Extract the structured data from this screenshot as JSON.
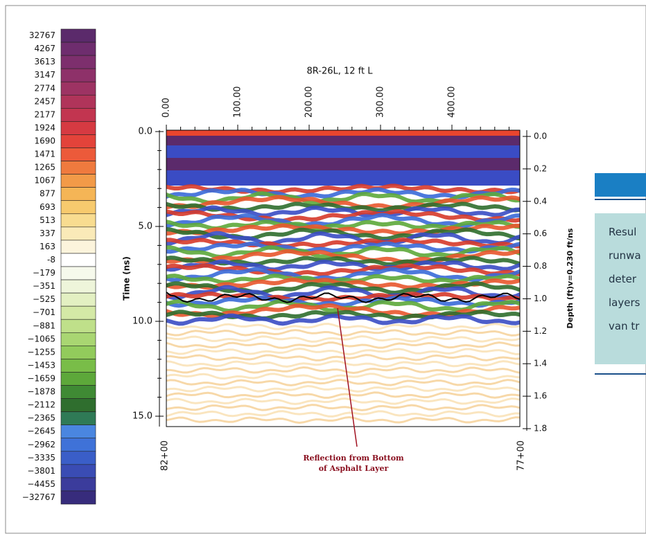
{
  "colorbar": {
    "labels": [
      "32767",
      "4267",
      "3613",
      "3147",
      "2774",
      "2457",
      "2177",
      "1924",
      "1690",
      "1471",
      "1265",
      "1067",
      "877",
      "693",
      "513",
      "337",
      "163",
      "-8",
      "−179",
      "−351",
      "−525",
      "−701",
      "−881",
      "−1065",
      "−1255",
      "−1453",
      "−1659",
      "−1878",
      "−2112",
      "−2365",
      "−2645",
      "−2962",
      "−3335",
      "−3801",
      "−4455",
      "−32767"
    ],
    "colors": [
      "#5b2a6b",
      "#6e2d6e",
      "#7d2f6d",
      "#8e3169",
      "#9d3363",
      "#b0345a",
      "#c23550",
      "#d63a42",
      "#e3433a",
      "#ec5a3a",
      "#ef7a3e",
      "#f29a48",
      "#f5b556",
      "#f7ca6e",
      "#f8dc90",
      "#faeab8",
      "#fcf4dc",
      "#ffffff",
      "#f6f9ec",
      "#eef5da",
      "#e3f0c2",
      "#d4e9a6",
      "#bfe08a",
      "#a9d672",
      "#92cb5c",
      "#79bd48",
      "#5da83a",
      "#3f8a34",
      "#2f6e2e",
      "#2f7a56",
      "#4a86e0",
      "#3f72d8",
      "#3a5ec8",
      "#3a4cb4",
      "#3b3c9c",
      "#372c7c"
    ]
  },
  "plot": {
    "title": "8R-26L, 12 ft L",
    "top_ticks": [
      "0.00",
      "100.00",
      "200.00",
      "300.00",
      "400.00"
    ],
    "left_label": "Time (ns)",
    "left_ticks": [
      "0.0",
      "5.0",
      "10.0",
      "15.0"
    ],
    "right_label": "Depth (ft)v=0.230 ft/ns",
    "right_ticks": [
      "0.0",
      "0.2",
      "0.4",
      "0.6",
      "0.8",
      "1.0",
      "1.2",
      "1.4",
      "1.6",
      "1.8"
    ],
    "bottom_left": "82+00",
    "bottom_right": "77+00",
    "annotation": [
      "Reflection from Bottom",
      "of Asphalt Layer"
    ]
  },
  "side_panel": {
    "lines": [
      "Resul",
      "runwa",
      "deter",
      "layers",
      "van tr"
    ]
  }
}
